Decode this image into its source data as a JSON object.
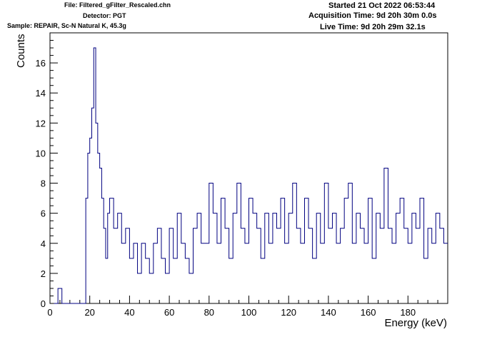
{
  "header": {
    "file_line": "File: Filtered_gFilter_Rescaled.chn",
    "detector_line": "Detector: PGT",
    "sample_line": "Sample: REPAIR, Sc-N Natural K, 45.3g",
    "started_line": "Started 21 Oct 2022 06:53:44",
    "acquisition_line": "Acquisition Time: 9d 20h 30m 0.0s",
    "live_line": "Live Time: 9d 20h 29m 32.1s"
  },
  "chart_data": {
    "type": "line",
    "title": "",
    "xlabel": "Energy (keV)",
    "ylabel": "Counts",
    "xlim": [
      0,
      200
    ],
    "ylim": [
      0,
      18
    ],
    "x_ticks": [
      0,
      20,
      40,
      60,
      80,
      100,
      120,
      140,
      160,
      180
    ],
    "y_ticks": [
      0,
      2,
      4,
      6,
      8,
      10,
      12,
      14,
      16
    ],
    "grid": false,
    "series_color": "#000080",
    "series": [
      {
        "name": "",
        "x": [
          2,
          4,
          6,
          8,
          10,
          12,
          14,
          16,
          18,
          19,
          20,
          21,
          22,
          23,
          24,
          25,
          26,
          27,
          28,
          29,
          30,
          32,
          34,
          36,
          38,
          40,
          42,
          44,
          46,
          48,
          50,
          52,
          54,
          56,
          58,
          60,
          62,
          64,
          66,
          68,
          70,
          72,
          74,
          76,
          78,
          80,
          82,
          84,
          86,
          88,
          90,
          92,
          94,
          96,
          98,
          100,
          102,
          104,
          106,
          108,
          110,
          112,
          114,
          116,
          118,
          120,
          122,
          124,
          126,
          128,
          130,
          132,
          134,
          136,
          138,
          140,
          142,
          144,
          146,
          148,
          150,
          152,
          154,
          156,
          158,
          160,
          162,
          164,
          166,
          168,
          170,
          172,
          174,
          176,
          178,
          180,
          182,
          184,
          186,
          188,
          190,
          192,
          194,
          196,
          198
        ],
        "y": [
          0,
          1,
          0,
          0,
          0,
          0,
          0,
          0,
          7,
          10,
          11,
          13,
          17,
          12,
          10,
          9,
          7,
          5,
          3,
          6,
          7,
          5,
          6,
          4,
          5,
          3,
          4,
          2,
          4,
          3,
          2,
          4,
          5,
          3,
          2,
          5,
          3,
          6,
          4,
          3,
          2,
          5,
          6,
          4,
          4,
          8,
          6,
          4,
          7,
          5,
          3,
          6,
          8,
          5,
          4,
          7,
          6,
          5,
          3,
          6,
          4,
          6,
          5,
          7,
          4,
          6,
          8,
          5,
          4,
          7,
          5,
          3,
          6,
          4,
          8,
          5,
          6,
          4,
          5,
          7,
          8,
          4,
          6,
          5,
          4,
          7,
          3,
          6,
          5,
          9,
          5,
          4,
          6,
          7,
          5,
          4,
          6,
          5,
          7,
          3,
          5,
          4,
          6,
          5,
          4
        ]
      }
    ]
  }
}
